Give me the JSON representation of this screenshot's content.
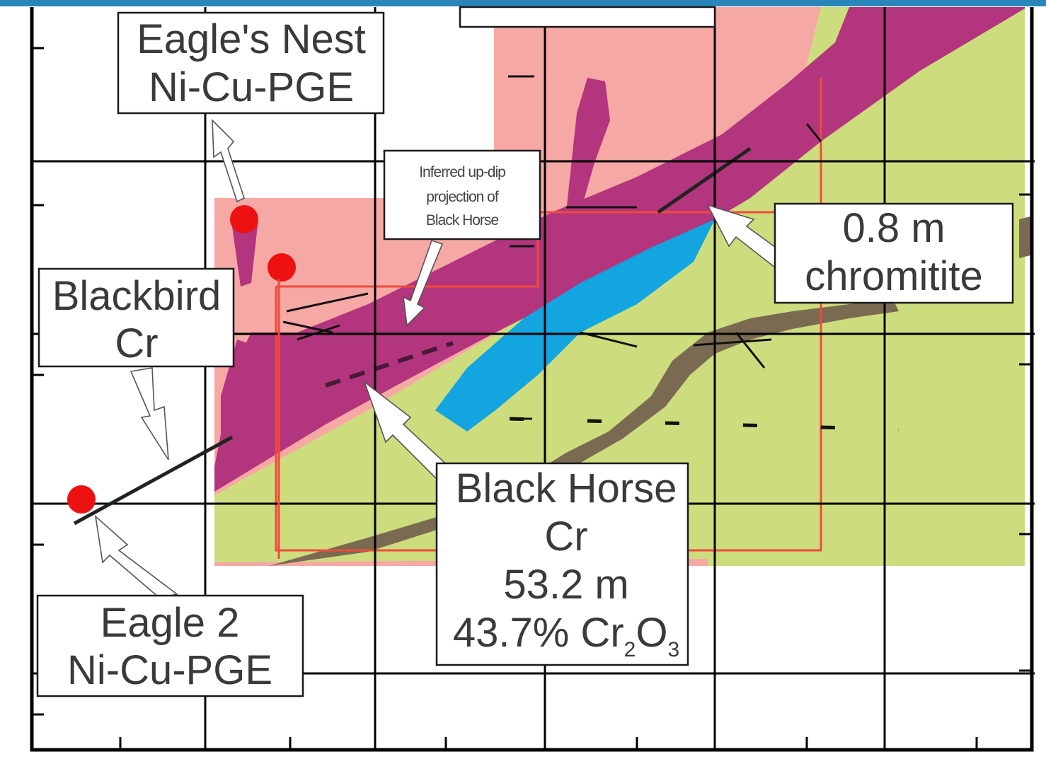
{
  "colors": {
    "header_bar": "#2a86b8",
    "intrusion_light": "#f6a8a4",
    "ultramafic": "#b2357d",
    "chromite_zone": "#12a5e0",
    "host_rock": "#cddd7e",
    "fault_dike": "#7b6a52",
    "property_outline": "#f04a3c",
    "deposit_marker": "#ee1111"
  },
  "icons": {
    "deposit": "red-circle-marker",
    "pointer": "white-callout-arrow"
  },
  "labels": {
    "eagles_nest": {
      "line1": "Eagle's Nest",
      "line2": "Ni-Cu-PGE"
    },
    "inferred": {
      "line1": "Inferred up-dip",
      "line2": "projection of",
      "line3": "Black Horse"
    },
    "chromitite": {
      "line1": "0.8 m",
      "line2": "chromitite"
    },
    "blackbird": {
      "line1": "Blackbird",
      "line2": "Cr"
    },
    "black_horse": {
      "line1": "Black Horse",
      "line2": "Cr",
      "line3": "53.2 m",
      "line4_main": "43.7% Cr",
      "line4_sub1": "2",
      "line4_mid": "O",
      "line4_sub2": "3"
    },
    "eagle2": {
      "line1": "Eagle 2",
      "line2": "Ni-Cu-PGE"
    }
  },
  "deposits": [
    "Eagle's Nest",
    "Blackbird",
    "Eagle 2"
  ]
}
